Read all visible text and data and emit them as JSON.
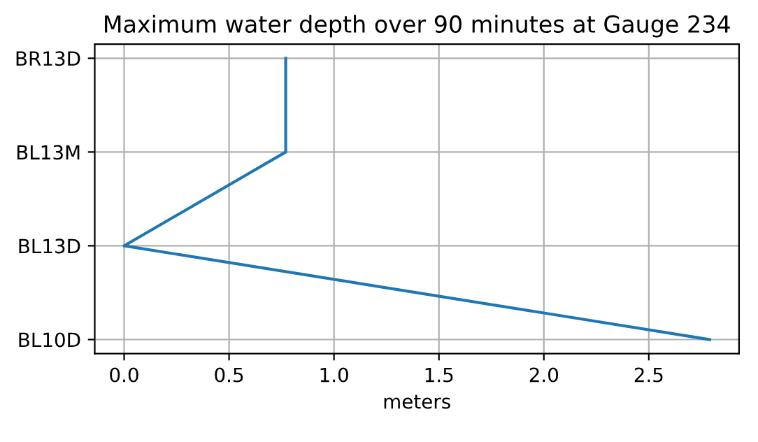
{
  "chart_data": {
    "type": "line",
    "orientation": "horizontal",
    "title": "Maximum water depth over 90 minutes at Gauge 234",
    "xlabel": "meters",
    "categories": [
      "BR13D",
      "BL13M",
      "BL13D",
      "BL10D"
    ],
    "series": [
      {
        "color": "#1f77b4",
        "values": [
          0.77,
          0.77,
          0.0,
          2.79
        ]
      }
    ],
    "xlim": [
      -0.14,
      2.93
    ],
    "xticks": [
      {
        "value": 0,
        "label": "0.0"
      },
      0.5,
      {
        "value": 1,
        "label": "1.0"
      },
      1.5,
      {
        "value": 2,
        "label": "2.0"
      },
      2.5
    ],
    "grid": true,
    "legend": false,
    "marker": "none",
    "line_style": "solid"
  }
}
